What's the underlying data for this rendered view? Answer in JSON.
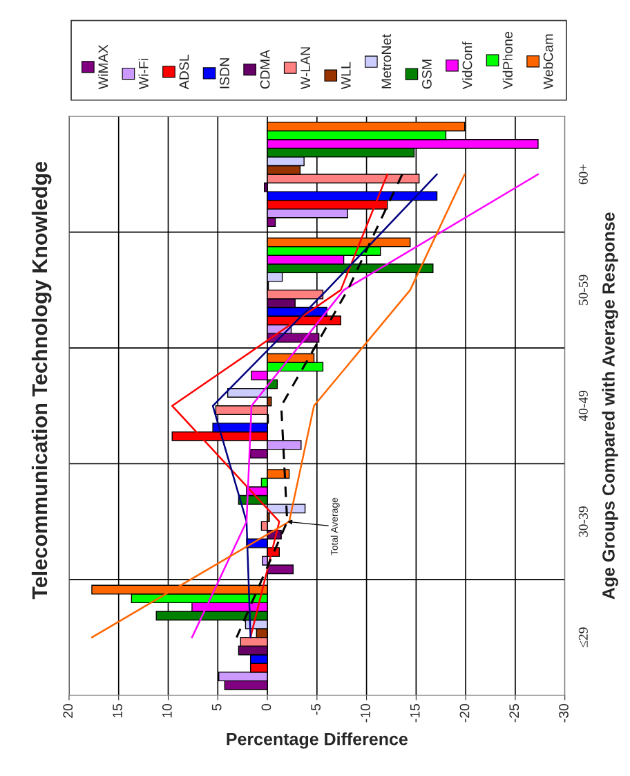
{
  "chart_data": {
    "type": "bar",
    "orientation": "horizontal",
    "title": "Telecommunication Technology Knowledge",
    "xlabel": "Percentage Difference",
    "ylabel": "Age Groups Compared with Average Response",
    "categories": [
      "60+",
      "50-59",
      "40-49",
      "30-39",
      "≤29"
    ],
    "xlim": [
      20,
      -30
    ],
    "xticks": [
      20,
      15,
      10,
      5,
      0,
      -5,
      -10,
      -15,
      -20,
      -25,
      -30
    ],
    "grid": true,
    "legend": "top",
    "series": [
      {
        "name": "WiMAX",
        "color": "#800080",
        "values": [
          -0.8,
          -5.2,
          1.7,
          -2.6,
          4.3
        ]
      },
      {
        "name": "Wi-Fi",
        "color": "#cc99ff",
        "values": [
          -8.1,
          -2.4,
          -3.4,
          0.5,
          4.9
        ]
      },
      {
        "name": "ADSL",
        "color": "#ff0000",
        "values": [
          -12.1,
          -7.4,
          9.6,
          -1.2,
          1.7
        ]
      },
      {
        "name": "ISDN",
        "color": "#0000ff",
        "values": [
          -17.1,
          -6.0,
          5.5,
          2.1,
          1.7
        ]
      },
      {
        "name": "CDMA",
        "color": "#660066",
        "values": [
          0.3,
          -2.8,
          -0.1,
          -1.4,
          2.9
        ]
      },
      {
        "name": "W-LAN",
        "color": "#ff8080",
        "values": [
          -15.3,
          -5.6,
          5.2,
          0.6,
          2.7
        ]
      },
      {
        "name": "WLL",
        "color": "#993300",
        "values": [
          -3.3,
          -0.1,
          -0.4,
          -0.2,
          1.1
        ]
      },
      {
        "name": "MetroNet",
        "color": "#ccccff",
        "values": [
          -3.7,
          -1.5,
          4.0,
          -3.8,
          2.2
        ]
      },
      {
        "name": "GSM",
        "color": "#008000",
        "values": [
          -14.8,
          -16.7,
          -1.0,
          2.9,
          11.2
        ]
      },
      {
        "name": "VidConf",
        "color": "#ff00ff",
        "values": [
          -27.3,
          -7.7,
          1.6,
          2.1,
          7.6
        ]
      },
      {
        "name": "VidPhone",
        "color": "#00ff00",
        "values": [
          -18.0,
          -11.4,
          -5.6,
          0.6,
          13.7
        ]
      },
      {
        "name": "WebCam",
        "color": "#ff6600",
        "values": [
          -19.9,
          -14.4,
          -4.7,
          -2.2,
          17.7
        ]
      },
      {
        "type": "line",
        "color": "#ff0000",
        "values": [
          -12.1,
          -7.4,
          9.6,
          -1.2,
          1.7
        ]
      },
      {
        "type": "line",
        "color": "#000080",
        "values": [
          -17.1,
          -6.0,
          5.5,
          2.1,
          1.7
        ]
      },
      {
        "type": "line",
        "color": "#ff00ff",
        "values": [
          -27.3,
          -7.7,
          1.6,
          2.1,
          7.6
        ]
      },
      {
        "type": "line",
        "color": "#ff6600",
        "values": [
          -19.9,
          -14.4,
          -4.7,
          -2.2,
          17.7
        ]
      },
      {
        "type": "line",
        "color": "#000000",
        "line_style": "dashed",
        "values": [
          -13.6,
          -8.1,
          -1.4,
          -2.0,
          3.1
        ]
      }
    ],
    "annotations": [
      {
        "text": "Total Average",
        "x": -2.0,
        "y": "30-39"
      }
    ]
  }
}
